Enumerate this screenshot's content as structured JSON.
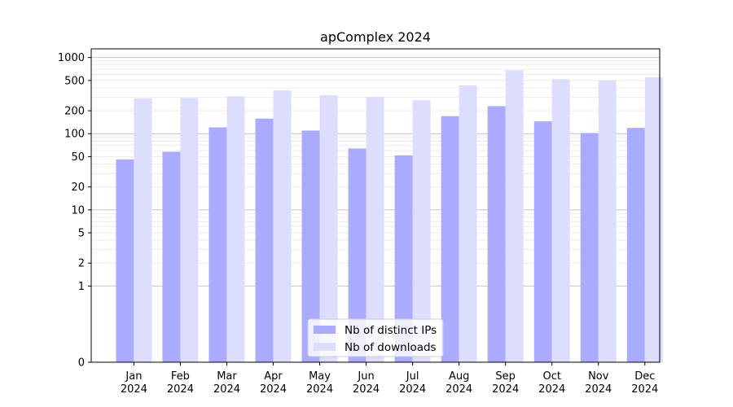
{
  "chart_data": {
    "type": "bar",
    "title": "apComplex 2024",
    "xlabel": "",
    "ylabel": "",
    "scale": "symlog",
    "ylim": [
      0,
      1300
    ],
    "yticks": [
      0,
      1,
      2,
      5,
      10,
      20,
      50,
      100,
      200,
      500,
      1000
    ],
    "categories": [
      "Jan\n2024",
      "Feb\n2024",
      "Mar\n2024",
      "Apr\n2024",
      "May\n2024",
      "Jun\n2024",
      "Jul\n2024",
      "Aug\n2024",
      "Sep\n2024",
      "Oct\n2024",
      "Nov\n2024",
      "Dec\n2024"
    ],
    "series": [
      {
        "name": "Nb of distinct IPs",
        "color": "#aaaaff",
        "values": [
          46,
          58,
          121,
          158,
          110,
          64,
          52,
          170,
          230,
          145,
          102,
          119
        ]
      },
      {
        "name": "Nb of downloads",
        "color": "#ddddff",
        "values": [
          290,
          295,
          310,
          370,
          320,
          305,
          275,
          430,
          680,
          520,
          500,
          550
        ]
      }
    ],
    "grid": true,
    "legend": "bottom-center"
  }
}
